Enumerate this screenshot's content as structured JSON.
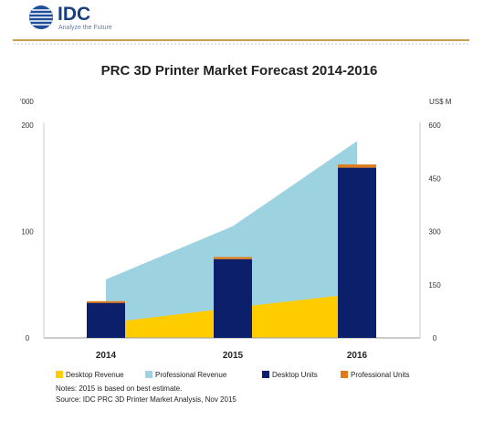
{
  "header": {
    "logo_text": "IDC",
    "tagline": "Analyze the Future"
  },
  "chart_data": {
    "type": "bar",
    "title": "PRC 3D Printer Market Forecast 2014-2016",
    "left_axis": {
      "unit_label": "'000",
      "ylim": [
        0,
        200
      ],
      "ticks": [
        0,
        100,
        200
      ],
      "tick_labels": [
        "0",
        "100",
        "200"
      ]
    },
    "right_axis": {
      "unit_label": "US$ M",
      "ylim": [
        0,
        600
      ],
      "ticks": [
        0,
        150,
        300,
        450,
        600
      ],
      "tick_labels": [
        "0",
        "150",
        "300",
        "450",
        "600"
      ]
    },
    "categories": [
      "2014",
      "2015",
      "2016"
    ],
    "series": [
      {
        "name": "Desktop Revenue",
        "kind": "area",
        "axis": "right",
        "color": "#ffcc00",
        "values": [
          42,
          85,
          125
        ]
      },
      {
        "name": "Professional Revenue",
        "kind": "area",
        "axis": "right",
        "color": "#9dd3e0",
        "values": [
          165,
          315,
          555
        ]
      },
      {
        "name": "Desktop Units",
        "kind": "bar",
        "axis": "left",
        "color": "#0c1f6b",
        "values": [
          33,
          74,
          160
        ]
      },
      {
        "name": "Professional Units",
        "kind": "bar",
        "axis": "left",
        "color": "#e07b1a",
        "values": [
          1.5,
          2,
          3
        ]
      }
    ],
    "grid": false,
    "legend_placement": "bottom"
  },
  "notes": {
    "note": "Notes: 2015 is based on best estimate.",
    "source": "Source: IDC PRC 3D Printer Market Analysis, Nov 2015"
  }
}
